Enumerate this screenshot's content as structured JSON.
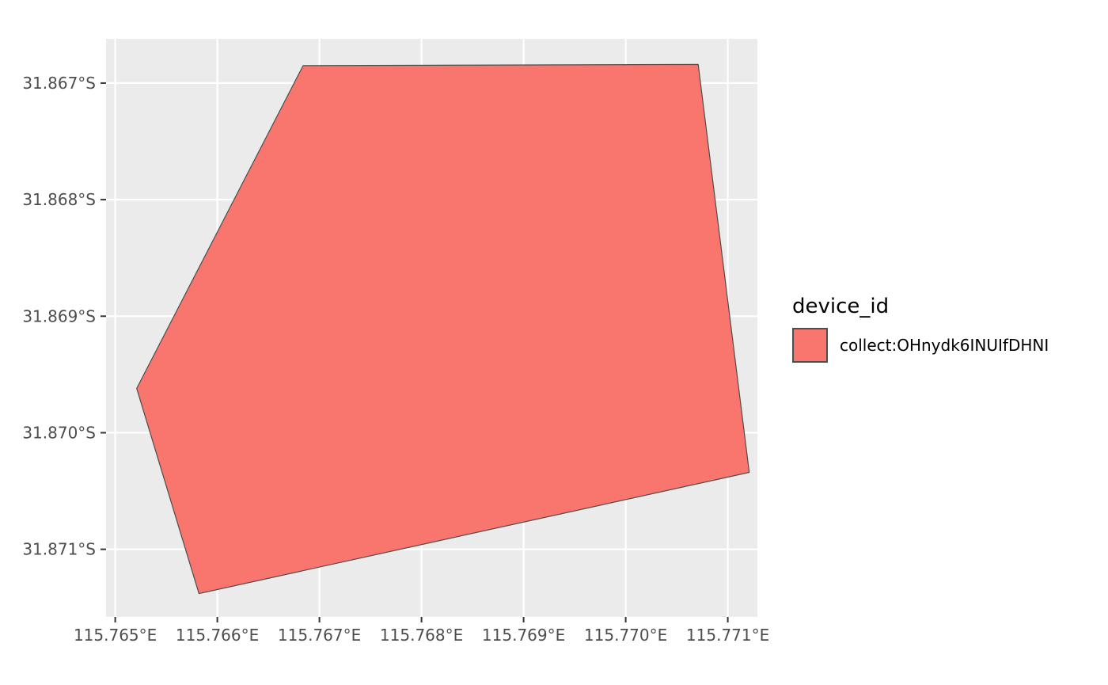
{
  "chart_data": {
    "type": "map-polygon",
    "crs": "WGS84 lon/lat",
    "panel_background": "#ebebeb",
    "grid": true,
    "grid_color": "#ffffff",
    "x": {
      "range": [
        115.76491,
        115.77129
      ],
      "ticks": [
        115.765,
        115.766,
        115.767,
        115.768,
        115.769,
        115.77,
        115.771
      ],
      "tick_labels": [
        "115.765°E",
        "115.766°E",
        "115.767°E",
        "115.768°E",
        "115.769°E",
        "115.770°E",
        "115.771°E"
      ]
    },
    "y": {
      "range": [
        -31.87158,
        -31.86662
      ],
      "ticks": [
        -31.867,
        -31.868,
        -31.869,
        -31.87,
        -31.871
      ],
      "tick_labels": [
        "31.867°S",
        "31.868°S",
        "31.869°S",
        "31.870°S",
        "31.871°S"
      ]
    },
    "polygons": [
      {
        "group": "collect:OHnydk6INUIfDHNI",
        "fill": "#f8766d",
        "stroke": "#4d4d4d",
        "coordinates": [
          [
            115.76684,
            -31.86685
          ],
          [
            115.77071,
            -31.86684
          ],
          [
            115.77121,
            -31.87034
          ],
          [
            115.76582,
            -31.87138
          ],
          [
            115.76521,
            -31.86962
          ],
          [
            115.76684,
            -31.86685
          ]
        ]
      }
    ],
    "legend": {
      "title": "device_id",
      "position": "right",
      "entries": [
        {
          "label": "collect:OHnydk6INUIfDHNI",
          "fill": "#f8766d",
          "stroke": "#4d4d4d"
        }
      ]
    }
  }
}
